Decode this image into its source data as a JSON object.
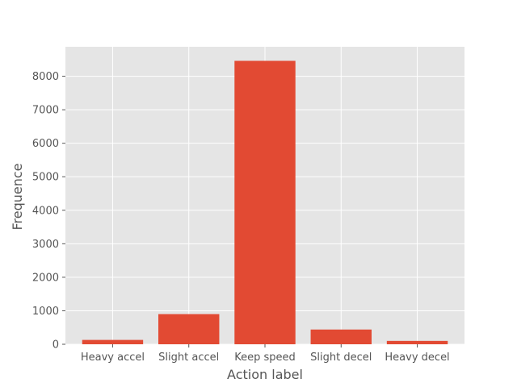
{
  "chart_data": {
    "type": "bar",
    "title": "",
    "xlabel": "Action label",
    "ylabel": "Frequence",
    "categories": [
      "Heavy accel",
      "Slight accel",
      "Keep speed",
      "Slight decel",
      "Heavy decel"
    ],
    "values": [
      130,
      900,
      8460,
      440,
      100
    ],
    "ylim": [
      0,
      8880
    ],
    "yticks": [
      0,
      1000,
      2000,
      3000,
      4000,
      5000,
      6000,
      7000,
      8000
    ],
    "grid": true,
    "bar_color": "#E24A33",
    "background_color": "#E5E5E5",
    "grid_color": "#FFFFFF"
  }
}
